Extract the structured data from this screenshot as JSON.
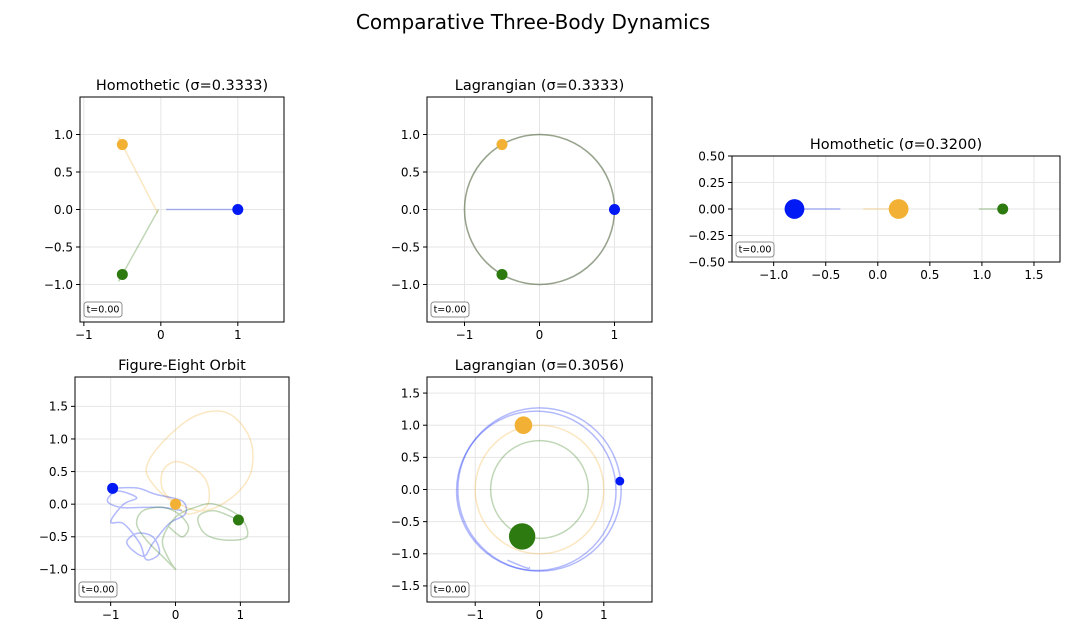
{
  "suptitle": "Comparative Three-Body Dynamics",
  "colors": {
    "body1": "#0019f5",
    "body2": "#f2b134",
    "body3": "#2d7a10"
  },
  "chart_data": [
    {
      "type": "scatter",
      "title": "Homothetic (σ=0.3333)",
      "xlim": [
        -1.05,
        1.6
      ],
      "ylim": [
        -1.5,
        1.5
      ],
      "xticks": [
        {
          "v": -1,
          "label": "−1"
        },
        {
          "v": 0,
          "label": "0"
        },
        {
          "v": 1,
          "label": "1"
        }
      ],
      "yticks": [
        {
          "v": 1.0,
          "label": "1.0"
        },
        {
          "v": 0.5,
          "label": "0.5"
        },
        {
          "v": 0.0,
          "label": "0.0"
        },
        {
          "v": -0.5,
          "label": "−0.5"
        },
        {
          "v": -1.0,
          "label": "−1.0"
        }
      ],
      "grid": true,
      "time_label": "t=0.00",
      "bodies": [
        {
          "x": 1.0,
          "y": 0.0,
          "size": 1.0,
          "color": "#0019f5"
        },
        {
          "x": -0.5,
          "y": 0.866,
          "size": 1.0,
          "color": "#f2b134"
        },
        {
          "x": -0.5,
          "y": -0.866,
          "size": 1.0,
          "color": "#2d7a10"
        }
      ],
      "trails": [
        {
          "color": "#0019f5",
          "points": [
            [
              0.07,
              0.0
            ],
            [
              1.0,
              0.0
            ]
          ]
        },
        {
          "color": "#f2b134",
          "points": [
            [
              -0.04,
              -0.05
            ],
            [
              -0.55,
              0.96
            ]
          ]
        },
        {
          "color": "#2d7a10",
          "points": [
            [
              -0.03,
              0.0
            ],
            [
              -0.55,
              -0.96
            ]
          ]
        }
      ]
    },
    {
      "type": "scatter",
      "title": "Lagrangian (σ=0.3333)",
      "xlim": [
        -1.5,
        1.5
      ],
      "ylim": [
        -1.5,
        1.5
      ],
      "xticks": [
        {
          "v": -1,
          "label": "−1"
        },
        {
          "v": 0,
          "label": "0"
        },
        {
          "v": 1,
          "label": "1"
        }
      ],
      "yticks": [
        {
          "v": 1.0,
          "label": "1.0"
        },
        {
          "v": 0.5,
          "label": "0.5"
        },
        {
          "v": 0.0,
          "label": "0.0"
        },
        {
          "v": -0.5,
          "label": "−0.5"
        },
        {
          "v": -1.0,
          "label": "−1.0"
        }
      ],
      "grid": true,
      "time_label": "t=0.00",
      "bodies": [
        {
          "x": 1.0,
          "y": 0.0,
          "size": 1.0,
          "color": "#0019f5"
        },
        {
          "x": -0.5,
          "y": 0.866,
          "size": 1.0,
          "color": "#f2b134"
        },
        {
          "x": -0.5,
          "y": -0.866,
          "size": 1.0,
          "color": "#2d7a10"
        }
      ],
      "circles": [
        {
          "cx": 0,
          "cy": 0,
          "r": 1.0,
          "color": "#0019f5"
        },
        {
          "cx": 0,
          "cy": 0,
          "r": 1.0,
          "color": "#f2b134"
        },
        {
          "cx": 0,
          "cy": 0,
          "r": 1.0,
          "color": "#2d7a10"
        }
      ]
    },
    {
      "type": "scatter",
      "title": "Homothetic (σ=0.3200)",
      "xlim": [
        -1.4,
        1.75
      ],
      "ylim": [
        -0.5,
        0.5
      ],
      "xticks": [
        {
          "v": -1.0,
          "label": "−1.0"
        },
        {
          "v": -0.5,
          "label": "−0.5"
        },
        {
          "v": 0.0,
          "label": "0.0"
        },
        {
          "v": 0.5,
          "label": "0.5"
        },
        {
          "v": 1.0,
          "label": "1.0"
        },
        {
          "v": 1.5,
          "label": "1.5"
        }
      ],
      "yticks": [
        {
          "v": 0.5,
          "label": "0.50"
        },
        {
          "v": 0.25,
          "label": "0.25"
        },
        {
          "v": 0.0,
          "label": "0.00"
        },
        {
          "v": -0.25,
          "label": "−0.25"
        },
        {
          "v": -0.5,
          "label": "−0.50"
        }
      ],
      "grid": true,
      "time_label": "t=0.00",
      "bodies": [
        {
          "x": -0.8,
          "y": 0.0,
          "size": 1.8,
          "color": "#0019f5"
        },
        {
          "x": 0.2,
          "y": 0.0,
          "size": 1.8,
          "color": "#f2b134"
        },
        {
          "x": 1.2,
          "y": 0.0,
          "size": 1.0,
          "color": "#2d7a10"
        }
      ],
      "trails": [
        {
          "color": "#0019f5",
          "points": [
            [
              -0.8,
              0.0
            ],
            [
              -0.36,
              0.0
            ]
          ]
        },
        {
          "color": "#f2b134",
          "points": [
            [
              -0.14,
              0.0
            ],
            [
              0.2,
              0.0
            ]
          ]
        },
        {
          "color": "#2d7a10",
          "points": [
            [
              0.97,
              0.0
            ],
            [
              1.2,
              0.0
            ]
          ]
        }
      ]
    },
    {
      "type": "scatter",
      "title": "Figure-Eight Orbit",
      "xlim": [
        -1.55,
        1.75
      ],
      "ylim": [
        -1.5,
        1.95
      ],
      "xticks": [
        {
          "v": -1,
          "label": "−1"
        },
        {
          "v": 0,
          "label": "0"
        },
        {
          "v": 1,
          "label": "1"
        }
      ],
      "yticks": [
        {
          "v": 1.5,
          "label": "1.5"
        },
        {
          "v": 1.0,
          "label": "1.0"
        },
        {
          "v": 0.5,
          "label": "0.5"
        },
        {
          "v": 0.0,
          "label": "0.0"
        },
        {
          "v": -0.5,
          "label": "−0.5"
        },
        {
          "v": -1.0,
          "label": "−1.0"
        }
      ],
      "grid": true,
      "time_label": "t=0.00",
      "bodies": [
        {
          "x": -0.97,
          "y": 0.243,
          "size": 1.0,
          "color": "#0019f5"
        },
        {
          "x": 0.0,
          "y": 0.0,
          "size": 1.0,
          "color": "#f2b134"
        },
        {
          "x": 0.97,
          "y": -0.243,
          "size": 1.0,
          "color": "#2d7a10"
        }
      ],
      "trails": [
        {
          "color": "#f2b134",
          "points": [
            [
              0.0,
              0.0
            ],
            [
              -0.3,
              0.25
            ],
            [
              -0.45,
              0.55
            ],
            [
              -0.2,
              0.95
            ],
            [
              0.3,
              1.35
            ],
            [
              0.8,
              1.4
            ],
            [
              1.15,
              1.0
            ],
            [
              1.15,
              0.45
            ],
            [
              0.8,
              0.05
            ],
            [
              0.35,
              -0.1
            ],
            [
              -0.15,
              0.15
            ],
            [
              -0.2,
              0.5
            ],
            [
              0.05,
              0.65
            ],
            [
              0.45,
              0.4
            ],
            [
              0.5,
              0.0
            ],
            [
              0.2,
              -0.15
            ],
            [
              0.0,
              0.0
            ]
          ]
        },
        {
          "color": "#0019f5",
          "points": [
            [
              -0.97,
              0.243
            ],
            [
              -0.6,
              0.25
            ],
            [
              -0.3,
              0.15
            ],
            [
              0.1,
              0.05
            ],
            [
              0.15,
              -0.15
            ],
            [
              -0.1,
              -0.3
            ],
            [
              -0.35,
              -0.6
            ],
            [
              -0.5,
              -0.8
            ],
            [
              -0.75,
              -0.6
            ],
            [
              -0.6,
              -0.45
            ],
            [
              -0.35,
              -0.5
            ],
            [
              -0.25,
              -0.75
            ],
            [
              -0.45,
              -0.85
            ],
            [
              -0.55,
              -0.6
            ],
            [
              -0.8,
              -0.3
            ],
            [
              -1.0,
              -0.27
            ],
            [
              -0.8,
              0.0
            ],
            [
              -0.6,
              0.1
            ],
            [
              -0.9,
              0.2
            ],
            [
              -1.05,
              0.05
            ],
            [
              -0.85,
              -0.05
            ],
            [
              -0.5,
              -0.05
            ],
            [
              -0.2,
              -0.05
            ],
            [
              0.1,
              -0.1
            ]
          ]
        },
        {
          "color": "#2d7a10",
          "points": [
            [
              0.97,
              -0.243
            ],
            [
              0.6,
              -0.1
            ],
            [
              0.35,
              -0.2
            ],
            [
              0.45,
              -0.45
            ],
            [
              0.75,
              -0.55
            ],
            [
              1.1,
              -0.5
            ],
            [
              1.0,
              -0.2
            ],
            [
              0.6,
              0.0
            ],
            [
              0.3,
              -0.05
            ],
            [
              0.0,
              -0.2
            ],
            [
              -0.2,
              -0.55
            ],
            [
              -0.1,
              -0.85
            ],
            [
              0.0,
              -1.0
            ],
            [
              -0.2,
              -0.8
            ],
            [
              -0.45,
              -0.55
            ],
            [
              -0.6,
              -0.3
            ],
            [
              -0.5,
              -0.1
            ],
            [
              -0.2,
              -0.05
            ],
            [
              0.05,
              -0.15
            ],
            [
              0.2,
              -0.35
            ],
            [
              0.1,
              -0.5
            ],
            [
              -0.1,
              -0.35
            ]
          ]
        }
      ]
    },
    {
      "type": "scatter",
      "title": "Lagrangian (σ=0.3056)",
      "xlim": [
        -1.75,
        1.75
      ],
      "ylim": [
        -1.75,
        1.75
      ],
      "xticks": [
        {
          "v": -1,
          "label": "−1"
        },
        {
          "v": 0,
          "label": "0"
        },
        {
          "v": 1,
          "label": "1"
        }
      ],
      "yticks": [
        {
          "v": 1.5,
          "label": "1.5"
        },
        {
          "v": 1.0,
          "label": "1.0"
        },
        {
          "v": 0.5,
          "label": "0.5"
        },
        {
          "v": 0.0,
          "label": "0.0"
        },
        {
          "v": -0.5,
          "label": "−0.5"
        },
        {
          "v": -1.0,
          "label": "−1.0"
        },
        {
          "v": -1.5,
          "label": "−1.5"
        }
      ],
      "grid": true,
      "time_label": "t=0.00",
      "bodies": [
        {
          "x": 1.25,
          "y": 0.13,
          "size": 0.8,
          "color": "#0019f5"
        },
        {
          "x": -0.25,
          "y": 1.0,
          "size": 1.6,
          "color": "#f2b134"
        },
        {
          "x": -0.27,
          "y": -0.73,
          "size": 2.4,
          "color": "#2d7a10"
        }
      ],
      "circles": [
        {
          "cx": -0.05,
          "cy": -0.02,
          "r": 1.24,
          "color": "#0019f5"
        },
        {
          "cx": 0.0,
          "cy": 0.0,
          "r": 1.27,
          "color": "#0019f5"
        },
        {
          "cx": 0.0,
          "cy": 0.0,
          "r": 1.0,
          "color": "#f2b134"
        },
        {
          "cx": 0.0,
          "cy": 0.0,
          "r": 0.76,
          "color": "#2d7a10"
        }
      ],
      "trails": [
        {
          "color": "#0019f5",
          "points": [
            [
              -0.5,
              -1.1
            ],
            [
              -0.2,
              -1.22
            ],
            [
              -0.15,
              -1.21
            ]
          ]
        }
      ]
    }
  ]
}
